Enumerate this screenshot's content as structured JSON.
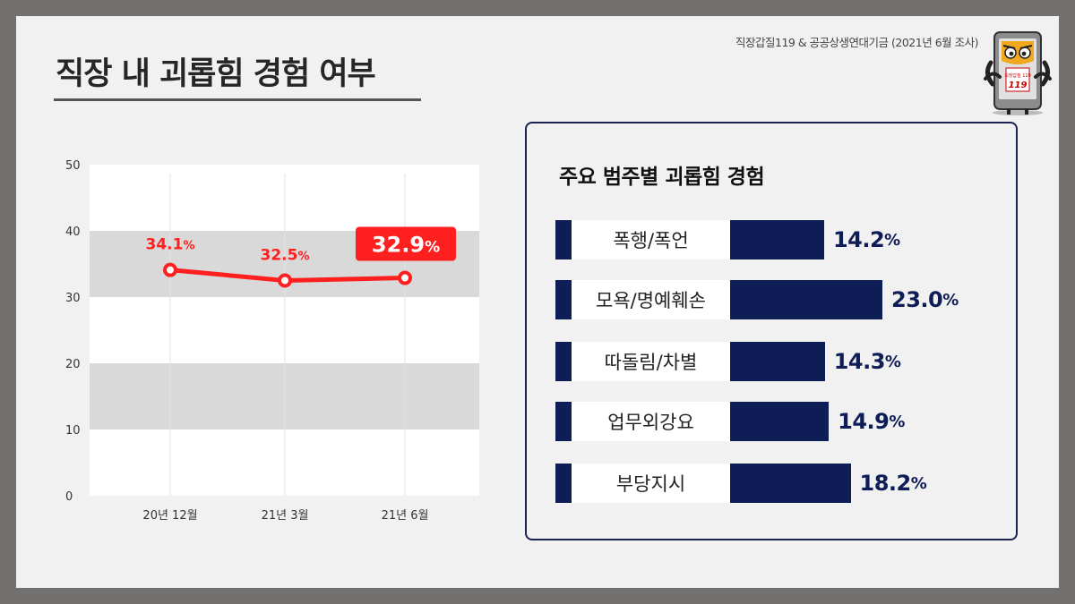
{
  "header": {
    "title": "직장 내 괴롭힘 경험 여부",
    "source": "직장갑질119 & 공공상생연대기금 (2021년 6월 조사)",
    "mascot_label": "직장갑질 119"
  },
  "colors": {
    "frame": "#737070",
    "background": "#f1f1f1",
    "line": "#ff1f1f",
    "navy": "#0f1d56",
    "band": "#d9d9d9"
  },
  "chart_data": [
    {
      "type": "line",
      "title": "",
      "x": [
        "20년 12월",
        "21년 3월",
        "21년 6월"
      ],
      "series": [
        {
          "values": [
            34.1,
            32.5,
            32.9
          ]
        }
      ],
      "data_labels": [
        {
          "value": "34.1",
          "unit": "%"
        },
        {
          "value": "32.5",
          "unit": "%"
        },
        {
          "value": "32.9",
          "unit": "%"
        }
      ],
      "highlight_index": 2,
      "ylim": [
        0,
        50
      ],
      "yticks": [
        "0",
        "10",
        "20",
        "30",
        "40",
        "50"
      ],
      "shaded_bands": [
        [
          10,
          20
        ],
        [
          30,
          40
        ]
      ],
      "grid": false,
      "legend": "none"
    },
    {
      "type": "bar",
      "orientation": "horizontal",
      "title": "주요 범주별 괴롭힘 경험",
      "categories": [
        "폭행/폭언",
        "모욕/명예훼손",
        "따돌림/차별",
        "업무외강요",
        "부당지시"
      ],
      "values": [
        14.2,
        23.0,
        14.3,
        14.9,
        18.2
      ],
      "value_labels": [
        "14.2",
        "23.0",
        "14.3",
        "14.9",
        "18.2"
      ],
      "unit": "%",
      "xlim": [
        0,
        23.0
      ]
    }
  ]
}
